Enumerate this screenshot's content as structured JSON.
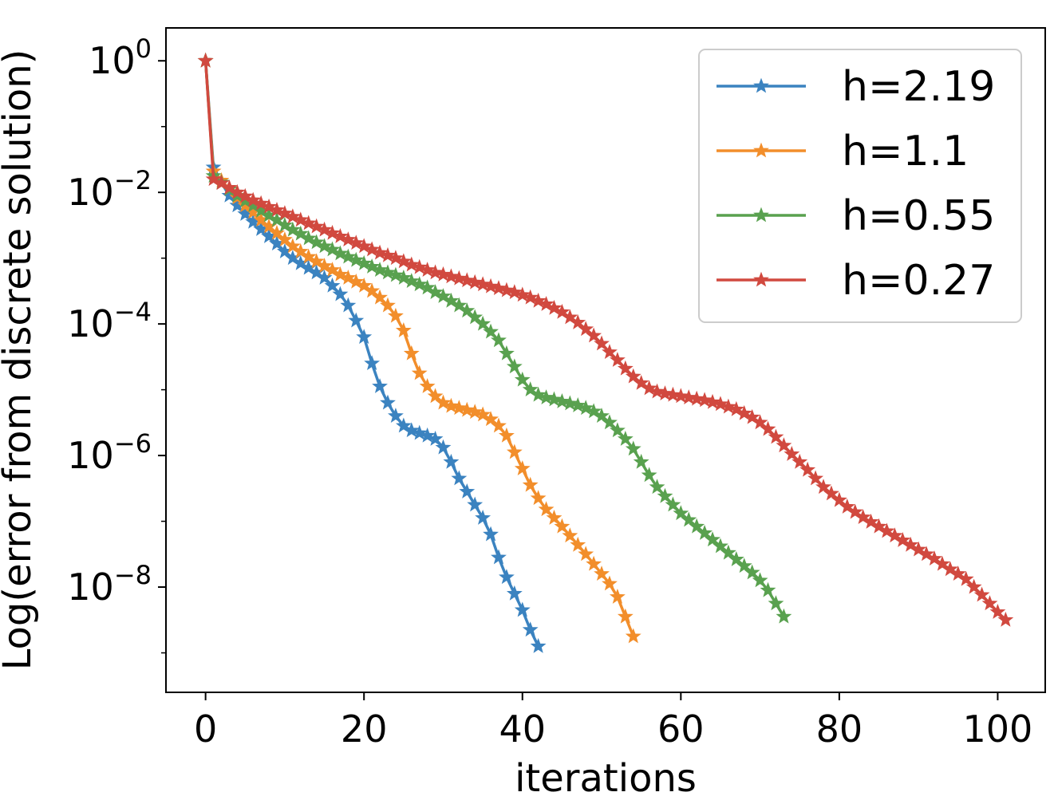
{
  "chart_data": {
    "type": "line",
    "yscale": "log",
    "xlabel": "iterations",
    "ylabel": "Log(error from discrete solution)",
    "xlim": [
      -5,
      106
    ],
    "ylim_exponent": [
      -9.6,
      0.5
    ],
    "xticks": [
      0,
      20,
      40,
      60,
      80,
      100
    ],
    "xtick_labels": [
      "0",
      "20",
      "40",
      "60",
      "80",
      "100"
    ],
    "yticks": [
      {
        "value": 1,
        "exponent": 0,
        "base": "10",
        "sup": "0"
      },
      {
        "value": 0.01,
        "exponent": -2,
        "base": "10",
        "sup": "−2"
      },
      {
        "value": 0.0001,
        "exponent": -4,
        "base": "10",
        "sup": "−4"
      },
      {
        "value": 1e-06,
        "exponent": -6,
        "base": "10",
        "sup": "−6"
      },
      {
        "value": 1e-08,
        "exponent": -8,
        "base": "10",
        "sup": "−8"
      }
    ],
    "legend_position": "top-right",
    "series": [
      {
        "name": "h=2.19",
        "color": "#3b83c0",
        "x": [
          0,
          1,
          2,
          3,
          4,
          5,
          6,
          7,
          8,
          9,
          10,
          11,
          12,
          13,
          14,
          15,
          16,
          17,
          18,
          19,
          20,
          21,
          22,
          23,
          24,
          25,
          26,
          27,
          28,
          29,
          30,
          31,
          32,
          33,
          34,
          35,
          36,
          37,
          38,
          39,
          40,
          41,
          42
        ],
        "log10_y": [
          0,
          -1.62,
          -1.85,
          -2.05,
          -2.2,
          -2.33,
          -2.45,
          -2.56,
          -2.67,
          -2.78,
          -2.9,
          -3.0,
          -3.08,
          -3.15,
          -3.22,
          -3.3,
          -3.42,
          -3.55,
          -3.72,
          -3.95,
          -4.2,
          -4.6,
          -4.95,
          -5.2,
          -5.4,
          -5.55,
          -5.62,
          -5.66,
          -5.7,
          -5.75,
          -5.88,
          -6.1,
          -6.35,
          -6.55,
          -6.75,
          -6.95,
          -7.2,
          -7.55,
          -7.85,
          -8.1,
          -8.35,
          -8.65,
          -8.9
        ]
      },
      {
        "name": "h=1.1",
        "color": "#f28e2b",
        "x": [
          0,
          1,
          2,
          3,
          4,
          5,
          6,
          7,
          8,
          9,
          10,
          11,
          12,
          13,
          14,
          15,
          16,
          17,
          18,
          19,
          20,
          21,
          22,
          23,
          24,
          25,
          26,
          27,
          28,
          29,
          30,
          31,
          32,
          33,
          34,
          35,
          36,
          37,
          38,
          39,
          40,
          41,
          42,
          43,
          44,
          45,
          46,
          47,
          48,
          49,
          50,
          51,
          52,
          53,
          54
        ],
        "log10_y": [
          0,
          -1.68,
          -1.82,
          -1.95,
          -2.08,
          -2.2,
          -2.3,
          -2.42,
          -2.52,
          -2.62,
          -2.72,
          -2.82,
          -2.9,
          -2.98,
          -3.05,
          -3.12,
          -3.18,
          -3.25,
          -3.3,
          -3.36,
          -3.42,
          -3.5,
          -3.6,
          -3.72,
          -3.88,
          -4.1,
          -4.45,
          -4.75,
          -4.95,
          -5.1,
          -5.2,
          -5.25,
          -5.28,
          -5.31,
          -5.34,
          -5.38,
          -5.45,
          -5.55,
          -5.7,
          -5.95,
          -6.2,
          -6.45,
          -6.65,
          -6.82,
          -6.95,
          -7.08,
          -7.22,
          -7.36,
          -7.5,
          -7.65,
          -7.8,
          -7.95,
          -8.15,
          -8.45,
          -8.75
        ]
      },
      {
        "name": "h=0.55",
        "color": "#59a14f",
        "x": [
          0,
          1,
          2,
          3,
          4,
          5,
          6,
          7,
          8,
          9,
          10,
          11,
          12,
          13,
          14,
          15,
          16,
          17,
          18,
          19,
          20,
          21,
          22,
          23,
          24,
          25,
          26,
          27,
          28,
          29,
          30,
          31,
          32,
          33,
          34,
          35,
          36,
          37,
          38,
          39,
          40,
          41,
          42,
          43,
          44,
          45,
          46,
          47,
          48,
          49,
          50,
          51,
          52,
          53,
          54,
          55,
          56,
          57,
          58,
          59,
          60,
          61,
          62,
          63,
          64,
          65,
          66,
          67,
          68,
          69,
          70,
          71,
          72,
          73
        ],
        "log10_y": [
          0,
          -1.75,
          -1.85,
          -1.95,
          -2.05,
          -2.13,
          -2.2,
          -2.28,
          -2.35,
          -2.42,
          -2.5,
          -2.57,
          -2.63,
          -2.7,
          -2.76,
          -2.82,
          -2.87,
          -2.93,
          -2.98,
          -3.03,
          -3.08,
          -3.13,
          -3.18,
          -3.22,
          -3.26,
          -3.3,
          -3.35,
          -3.4,
          -3.45,
          -3.52,
          -3.58,
          -3.65,
          -3.72,
          -3.8,
          -3.9,
          -4.0,
          -4.12,
          -4.25,
          -4.45,
          -4.65,
          -4.85,
          -5.0,
          -5.08,
          -5.12,
          -5.15,
          -5.18,
          -5.21,
          -5.24,
          -5.28,
          -5.33,
          -5.4,
          -5.5,
          -5.62,
          -5.75,
          -5.9,
          -6.1,
          -6.3,
          -6.48,
          -6.62,
          -6.75,
          -6.88,
          -6.98,
          -7.08,
          -7.18,
          -7.28,
          -7.38,
          -7.48,
          -7.58,
          -7.68,
          -7.78,
          -7.9,
          -8.05,
          -8.25,
          -8.45
        ]
      },
      {
        "name": "h=0.27",
        "color": "#d1493f",
        "x": [
          0,
          1,
          2,
          3,
          4,
          5,
          6,
          7,
          8,
          9,
          10,
          11,
          12,
          13,
          14,
          15,
          16,
          17,
          18,
          19,
          20,
          21,
          22,
          23,
          24,
          25,
          26,
          27,
          28,
          29,
          30,
          31,
          32,
          33,
          34,
          35,
          36,
          37,
          38,
          39,
          40,
          41,
          42,
          43,
          44,
          45,
          46,
          47,
          48,
          49,
          50,
          51,
          52,
          53,
          54,
          55,
          56,
          57,
          58,
          59,
          60,
          61,
          62,
          63,
          64,
          65,
          66,
          67,
          68,
          69,
          70,
          71,
          72,
          73,
          74,
          75,
          76,
          77,
          78,
          79,
          80,
          81,
          82,
          83,
          84,
          85,
          86,
          87,
          88,
          89,
          90,
          91,
          92,
          93,
          94,
          95,
          96,
          97,
          98,
          99,
          100,
          101
        ],
        "log10_y": [
          0,
          -1.8,
          -1.86,
          -1.93,
          -2.0,
          -2.06,
          -2.12,
          -2.17,
          -2.22,
          -2.27,
          -2.32,
          -2.37,
          -2.42,
          -2.47,
          -2.52,
          -2.57,
          -2.62,
          -2.67,
          -2.72,
          -2.77,
          -2.82,
          -2.87,
          -2.92,
          -2.96,
          -3.0,
          -3.05,
          -3.1,
          -3.14,
          -3.18,
          -3.22,
          -3.25,
          -3.28,
          -3.31,
          -3.34,
          -3.37,
          -3.4,
          -3.43,
          -3.46,
          -3.49,
          -3.52,
          -3.56,
          -3.6,
          -3.65,
          -3.7,
          -3.76,
          -3.82,
          -3.9,
          -3.98,
          -4.08,
          -4.18,
          -4.3,
          -4.43,
          -4.55,
          -4.68,
          -4.8,
          -4.9,
          -4.98,
          -5.03,
          -5.06,
          -5.08,
          -5.1,
          -5.12,
          -5.14,
          -5.16,
          -5.19,
          -5.22,
          -5.26,
          -5.3,
          -5.36,
          -5.42,
          -5.5,
          -5.6,
          -5.72,
          -5.85,
          -5.98,
          -6.1,
          -6.22,
          -6.35,
          -6.48,
          -6.58,
          -6.68,
          -6.78,
          -6.86,
          -6.94,
          -7.01,
          -7.08,
          -7.15,
          -7.22,
          -7.29,
          -7.36,
          -7.43,
          -7.5,
          -7.57,
          -7.65,
          -7.73,
          -7.8,
          -7.88,
          -8.0,
          -8.12,
          -8.25,
          -8.38,
          -8.5
        ]
      }
    ]
  }
}
